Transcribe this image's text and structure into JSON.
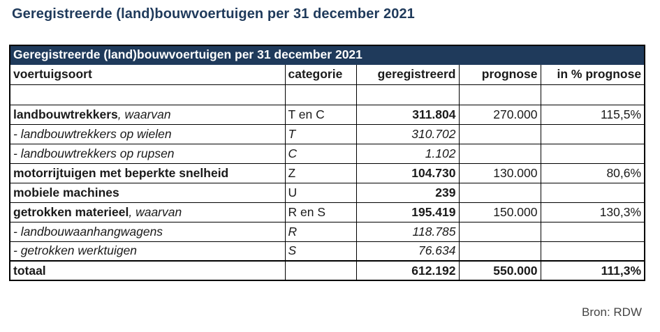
{
  "title": "Geregistreerde (land)bouwvoertuigen per 31 december 2021",
  "table": {
    "caption": "Geregistreerde (land)bouwvoertuigen per 31 december 2021",
    "headers": [
      "voertuigsoort",
      "categorie",
      "geregistreerd",
      "prognose",
      "in % prognose"
    ],
    "rows": [
      {
        "name": "landbouwtrekkers",
        "suffix": ", waarvan",
        "cat": "T en C",
        "reg": "311.804",
        "prog": "270.000",
        "pct": "115,5%",
        "style": "main"
      },
      {
        "name": "- landbouwtrekkers op wielen",
        "suffix": "",
        "cat": "T",
        "reg": "310.702",
        "prog": "",
        "pct": "",
        "style": "sub"
      },
      {
        "name": "- landbouwtrekkers op rupsen",
        "suffix": "",
        "cat": "C",
        "reg": "1.102",
        "prog": "",
        "pct": "",
        "style": "sub"
      },
      {
        "name": "motorrijtuigen met beperkte snelheid",
        "suffix": "",
        "cat": "Z",
        "reg": "104.730",
        "prog": "130.000",
        "pct": "80,6%",
        "style": "main"
      },
      {
        "name": "mobiele machines",
        "suffix": "",
        "cat": "U",
        "reg": "239",
        "prog": "",
        "pct": "",
        "style": "main"
      },
      {
        "name": "getrokken materieel",
        "suffix": ", waarvan",
        "cat": "R en S",
        "reg": "195.419",
        "prog": "150.000",
        "pct": "130,3%",
        "style": "main"
      },
      {
        "name": "- landbouwaanhangwagens",
        "suffix": "",
        "cat": "R",
        "reg": "118.785",
        "prog": "",
        "pct": "",
        "style": "sub"
      },
      {
        "name": "- getrokken werktuigen",
        "suffix": "",
        "cat": "S",
        "reg": "76.634",
        "prog": "",
        "pct": "",
        "style": "sub"
      }
    ],
    "total": {
      "label": "totaal",
      "reg": "612.192",
      "prog": "550.000",
      "pct": "111,3%"
    }
  },
  "source": "Bron: RDW",
  "colors": {
    "title": "#1f3a5b",
    "caption_bg": "#1f3a5b"
  }
}
